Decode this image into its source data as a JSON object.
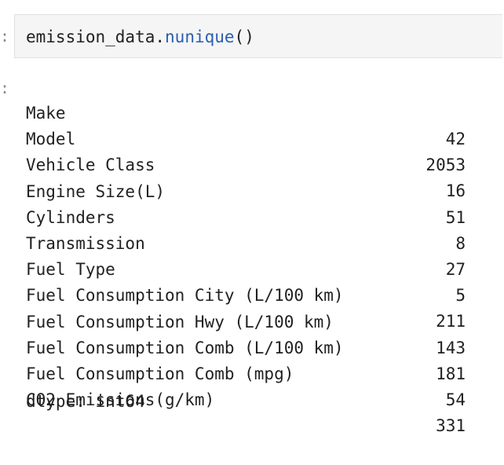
{
  "input": {
    "prompt": ":",
    "code": {
      "object": "emission_data",
      "dot": ".",
      "method": "nunique",
      "parens": "()"
    }
  },
  "output": {
    "prompt": ":",
    "rows": [
      {
        "key": "Make",
        "value": "42"
      },
      {
        "key": "Model",
        "value": "2053"
      },
      {
        "key": "Vehicle Class",
        "value": "16"
      },
      {
        "key": "Engine Size(L)",
        "value": "51"
      },
      {
        "key": "Cylinders",
        "value": "8"
      },
      {
        "key": "Transmission",
        "value": "27"
      },
      {
        "key": "Fuel Type",
        "value": "5"
      },
      {
        "key": "Fuel Consumption City (L/100 km)",
        "value": "211"
      },
      {
        "key": "Fuel Consumption Hwy (L/100 km)",
        "value": "143"
      },
      {
        "key": "Fuel Consumption Comb (L/100 km)",
        "value": "181"
      },
      {
        "key": "Fuel Consumption Comb (mpg)",
        "value": "54"
      },
      {
        "key": "CO2 Emissions(g/km)",
        "value": "331"
      }
    ],
    "dtype": "dtype: int64"
  },
  "colors": {
    "method": "#2a5db0",
    "cell_background": "#f5f5f5"
  }
}
